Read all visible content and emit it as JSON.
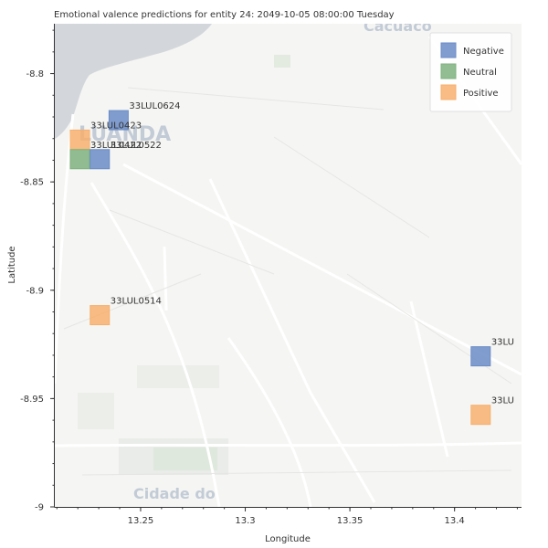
{
  "chart_data": {
    "type": "scatter",
    "title": "Emotional valence predictions for entity 24: 2049-10-05 08:00:00 Tuesday",
    "xlabel": "Longitude",
    "ylabel": "Latitude",
    "xlim": [
      13.209,
      13.432
    ],
    "ylim": [
      -9.0,
      -8.777
    ],
    "xticks": [
      13.25,
      13.3,
      13.35,
      13.4
    ],
    "xtick_labels": [
      "13.25",
      "13.3",
      "13.35",
      "13.4"
    ],
    "yticks": [
      -8.8,
      -8.85,
      -8.9,
      -8.95,
      -9.0
    ],
    "ytick_labels": [
      "-8.8",
      "-8.85",
      "-8.9",
      "-8.95",
      "-9"
    ],
    "legend_position": "top-right",
    "colors": {
      "Negative": "#6b8cc7",
      "Neutral": "#7fb27f",
      "Positive": "#f7b06e"
    },
    "legend": [
      {
        "name": "Negative",
        "color": "#6b8cc7"
      },
      {
        "name": "Neutral",
        "color": "#7fb27f"
      },
      {
        "name": "Positive",
        "color": "#f7b06e"
      }
    ],
    "points": [
      {
        "label": "33LUL0624",
        "x": 13.2395,
        "y": -8.8215,
        "category": "Negative"
      },
      {
        "label": "33LUL0423",
        "x": 13.221,
        "y": -8.8305,
        "category": "Positive"
      },
      {
        "label": "33LUL0422",
        "x": 13.221,
        "y": -8.8395,
        "category": "Neutral"
      },
      {
        "label": "33LUL0522",
        "x": 13.2305,
        "y": -8.8395,
        "category": "Negative"
      },
      {
        "label": "33LUL0514",
        "x": 13.2305,
        "y": -8.9115,
        "category": "Positive"
      },
      {
        "label": "33LU",
        "x": 13.4125,
        "y": -8.9305,
        "category": "Negative"
      },
      {
        "label": "33LU",
        "x": 13.4125,
        "y": -8.9575,
        "category": "Positive"
      }
    ],
    "map_labels": [
      "Cacuaco",
      "LUANDA",
      "Cidade do"
    ]
  }
}
